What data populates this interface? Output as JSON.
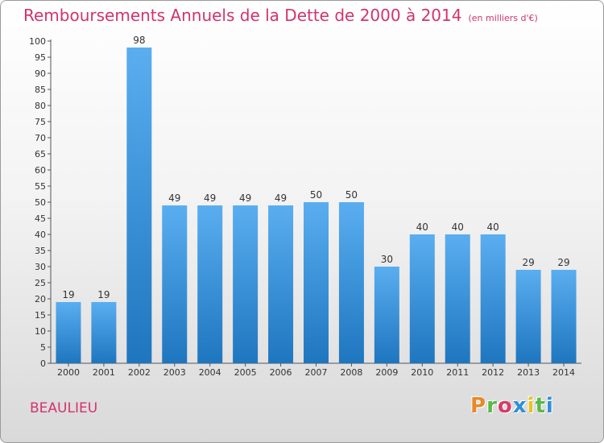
{
  "header": {
    "title": "Remboursements Annuels de la Dette de 2000 à 2014",
    "subtitle": "(en milliers d'€)"
  },
  "footer": {
    "place": "BEAULIEU",
    "logo": "Proxiti"
  },
  "colors": {
    "title": "#d2336e",
    "bar_top": "#5aaef0",
    "bar_bottom": "#1e76bf",
    "logo_letters": [
      "#e8892a",
      "#5bb84a",
      "#d63c6a",
      "#2f8fd6",
      "#e8c12a",
      "#5bb84a",
      "#2f8fd6"
    ]
  },
  "chart_data": {
    "type": "bar",
    "title": "Remboursements Annuels de la Dette de 2000 à 2014",
    "subtitle": "(en milliers d'€)",
    "xlabel": "",
    "ylabel": "",
    "ylim": [
      0,
      100
    ],
    "ytick_step": 5,
    "grid": false,
    "categories": [
      "2000",
      "2001",
      "2002",
      "2003",
      "2004",
      "2005",
      "2006",
      "2007",
      "2008",
      "2009",
      "2010",
      "2011",
      "2012",
      "2013",
      "2014"
    ],
    "values": [
      19,
      19,
      98,
      49,
      49,
      49,
      49,
      50,
      50,
      30,
      40,
      40,
      40,
      29,
      29
    ]
  }
}
